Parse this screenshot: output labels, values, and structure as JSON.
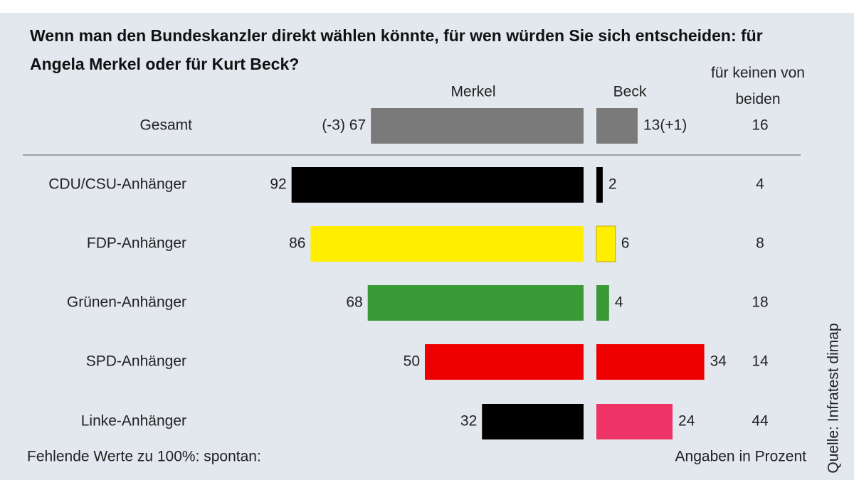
{
  "chart_data": {
    "type": "diverging-bar",
    "title": "Wenn man den Bundeskanzler direkt wählen könnte, für wen würden Sie sich entscheiden: für Angela Merkel oder für Kurt Beck?",
    "categories": [
      "Gesamt",
      "CDU/CSU-Anhänger",
      "FDP-Anhänger",
      "Grünen-Anhänger",
      "SPD-Anhänger",
      "Linke-Anhänger"
    ],
    "series": [
      {
        "name": "Merkel",
        "values": [
          67,
          92,
          86,
          68,
          50,
          32
        ],
        "value_labels": [
          "(-3) 67",
          "92",
          "86",
          "68",
          "50",
          "32"
        ],
        "colors": [
          "#7a7a7a",
          "#000000",
          "#ffee00",
          "#3a9a35",
          "#ee0000",
          "#000000"
        ]
      },
      {
        "name": "Beck",
        "values": [
          13,
          2,
          6,
          4,
          34,
          24
        ],
        "value_labels": [
          "13(+1)",
          "2",
          "6",
          "4",
          "34",
          "24"
        ],
        "colors": [
          "#7a7a7a",
          "#000000",
          "#ffee00",
          "#3a9a35",
          "#ee0000",
          "#ee3366"
        ]
      },
      {
        "name": "für keinen von beiden",
        "values": [
          16,
          4,
          8,
          18,
          14,
          44
        ]
      }
    ],
    "notes": [
      "Fehlende Werte zu 100%: spontan:",
      "Angaben in Prozent"
    ],
    "source": "Quelle: Infratest dimap"
  }
}
